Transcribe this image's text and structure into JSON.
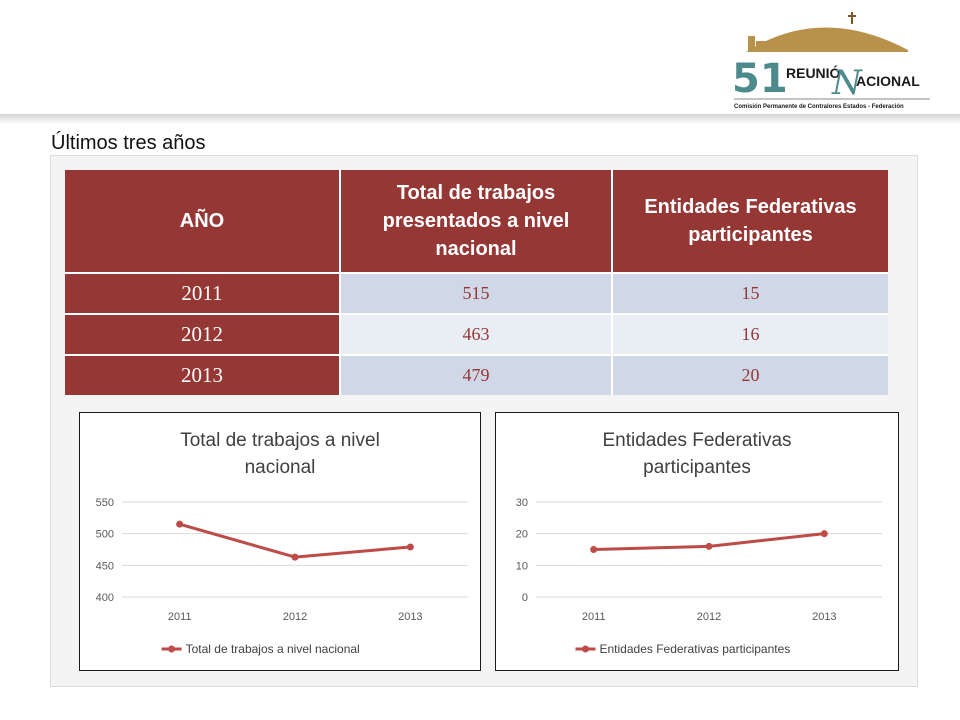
{
  "header": {
    "logo": {
      "number": "51",
      "word1": "REUNIÓ",
      "word2": "ACIONAL",
      "initial": "N",
      "subtitle": "Comisión Permanente de Contralores Estados - Federación"
    },
    "colors": {
      "gold": "#b8914a",
      "teal": "#4d8a8c",
      "dark": "#1a1a1a"
    }
  },
  "subtitle": "Últimos tres años",
  "table": {
    "headers": [
      "AÑO",
      "Total de trabajos presentados a nivel nacional",
      "Entidades Federativas participantes"
    ],
    "rows": [
      {
        "year": "2011",
        "works": "515",
        "entities": "15"
      },
      {
        "year": "2012",
        "works": "463",
        "entities": "16"
      },
      {
        "year": "2013",
        "works": "479",
        "entities": "20"
      }
    ]
  },
  "colors": {
    "header_bg": "#953735",
    "row_odd": "#d0d8e8",
    "row_even": "#e9edf4",
    "line": "#be4b48"
  },
  "chart_data": [
    {
      "type": "line",
      "title_lines": [
        "Total de trabajos a nivel",
        "nacional"
      ],
      "categories": [
        "2011",
        "2012",
        "2013"
      ],
      "series": [
        {
          "name": "Total de trabajos a nivel nacional",
          "values": [
            515,
            463,
            479
          ],
          "color": "#be4b48"
        }
      ],
      "ylim": [
        400,
        550
      ],
      "yticks": [
        400,
        450,
        500,
        550
      ],
      "grid": true,
      "legend": "bottom"
    },
    {
      "type": "line",
      "title_lines": [
        "Entidades Federativas",
        "participantes"
      ],
      "categories": [
        "2011",
        "2012",
        "2013"
      ],
      "series": [
        {
          "name": "Entidades Federativas participantes",
          "values": [
            15,
            16,
            20
          ],
          "color": "#be4b48"
        }
      ],
      "ylim": [
        0,
        30
      ],
      "yticks": [
        0,
        10,
        20,
        30
      ],
      "grid": true,
      "legend": "bottom"
    }
  ]
}
